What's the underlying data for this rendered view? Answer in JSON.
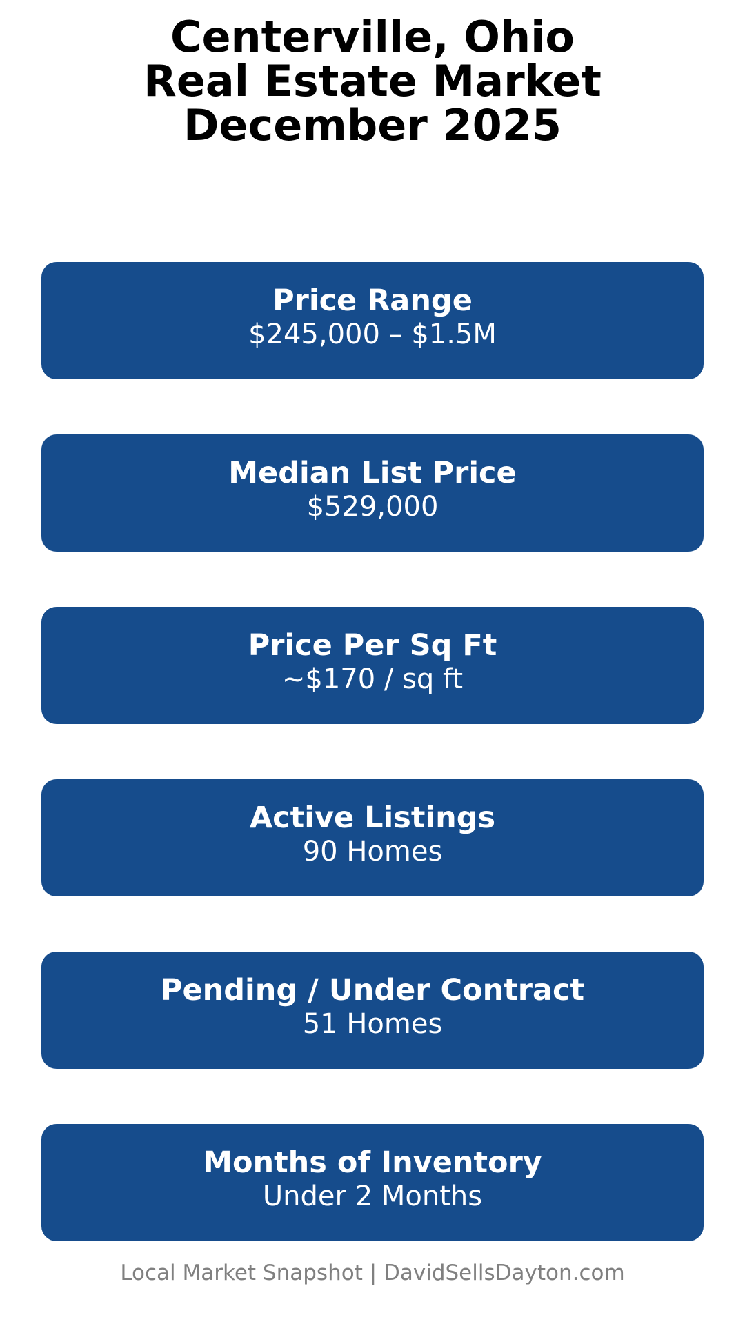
{
  "title": [
    "Centerville, Ohio",
    "Real Estate Market",
    "December 2025"
  ],
  "cards": [
    {
      "label": "Price Range",
      "value": "$245,000 – $1.5M"
    },
    {
      "label": "Median List Price",
      "value": "$529,000"
    },
    {
      "label": "Price Per Sq Ft",
      "value": "~$170 / sq ft"
    },
    {
      "label": "Active Listings",
      "value": "90 Homes"
    },
    {
      "label": "Pending / Under Contract",
      "value": "51 Homes"
    },
    {
      "label": "Months of Inventory",
      "value": "Under 2 Months"
    }
  ],
  "footer": "Local Market Snapshot | DavidSellsDayton.com",
  "colors": {
    "card": "#164C8C",
    "footer_text": "#808080"
  }
}
